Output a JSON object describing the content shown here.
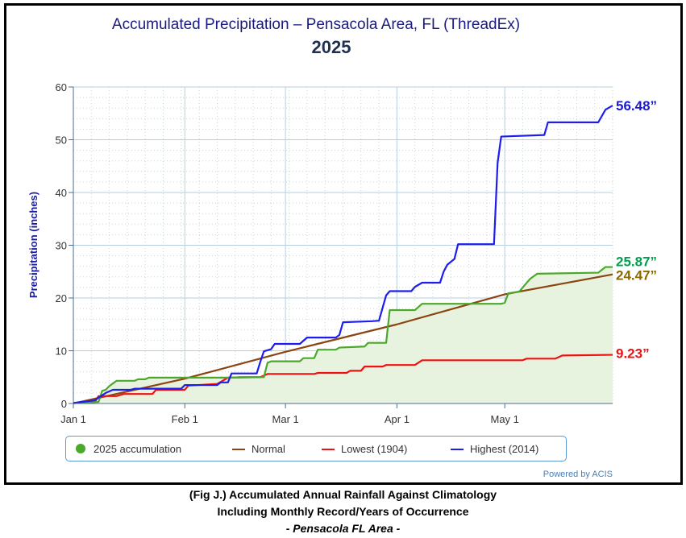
{
  "chart_data": {
    "type": "line",
    "title": "Accumulated Precipitation – Pensacola Area, FL (ThreadEx)",
    "subtitle": "2025",
    "xlabel": "",
    "ylabel": "Precipitation (inches)",
    "x_type": "date",
    "xlim": [
      "2025-01-01",
      "2025-05-31"
    ],
    "ylim": [
      0,
      60
    ],
    "y_ticks": [
      "0",
      "10",
      "20",
      "30",
      "40",
      "50",
      "60"
    ],
    "y_tick_values": [
      0,
      10,
      20,
      30,
      40,
      50,
      60
    ],
    "x_ticks": [
      {
        "label": "Jan 1",
        "date": "2025-01-01"
      },
      {
        "label": "Feb 1",
        "date": "2025-02-01"
      },
      {
        "label": "Mar 1",
        "date": "2025-03-01"
      },
      {
        "label": "Apr 1",
        "date": "2025-04-01"
      },
      {
        "label": "May 1",
        "date": "2025-05-01"
      }
    ],
    "grid": true,
    "legend_position": "bottom",
    "series": [
      {
        "name": "2025 accumulation",
        "color": "#4aa82a",
        "fill": "#e8f3df",
        "end_label": "25.87”",
        "end_label_color": "#00a050",
        "points": [
          [
            "2025-01-01",
            0.1
          ],
          [
            "2025-01-08",
            0.3
          ],
          [
            "2025-01-09",
            2.4
          ],
          [
            "2025-01-10",
            2.6
          ],
          [
            "2025-01-11",
            3.3
          ],
          [
            "2025-01-13",
            4.3
          ],
          [
            "2025-01-18",
            4.3
          ],
          [
            "2025-01-19",
            4.6
          ],
          [
            "2025-01-21",
            4.6
          ],
          [
            "2025-01-22",
            4.9
          ],
          [
            "2025-02-15",
            4.9
          ],
          [
            "2025-02-16",
            5.0
          ],
          [
            "2025-02-23",
            5.0
          ],
          [
            "2025-02-24",
            7.7
          ],
          [
            "2025-02-25",
            8.0
          ],
          [
            "2025-03-05",
            8.0
          ],
          [
            "2025-03-06",
            8.6
          ],
          [
            "2025-03-09",
            8.6
          ],
          [
            "2025-03-10",
            10.2
          ],
          [
            "2025-03-15",
            10.2
          ],
          [
            "2025-03-16",
            10.6
          ],
          [
            "2025-03-23",
            10.8
          ],
          [
            "2025-03-24",
            11.5
          ],
          [
            "2025-03-29",
            11.5
          ],
          [
            "2025-03-30",
            17.7
          ],
          [
            "2025-04-06",
            17.7
          ],
          [
            "2025-04-08",
            18.9
          ],
          [
            "2025-04-30",
            18.9
          ],
          [
            "2025-05-01",
            19.1
          ],
          [
            "2025-05-02",
            20.9
          ],
          [
            "2025-05-05",
            21.2
          ],
          [
            "2025-05-08",
            23.6
          ],
          [
            "2025-05-10",
            24.6
          ],
          [
            "2025-05-27",
            24.8
          ],
          [
            "2025-05-29",
            25.87
          ],
          [
            "2025-05-31",
            25.87
          ]
        ]
      },
      {
        "name": "Normal",
        "color": "#8b4513",
        "end_label": "24.47”",
        "end_label_color": "#8a6a00",
        "points": [
          [
            "2025-01-01",
            0.0
          ],
          [
            "2025-02-01",
            4.7
          ],
          [
            "2025-03-01",
            9.8
          ],
          [
            "2025-04-01",
            15.0
          ],
          [
            "2025-05-01",
            20.7
          ],
          [
            "2025-05-31",
            24.47
          ]
        ]
      },
      {
        "name": "Lowest (1904)",
        "color": "#ee1111",
        "end_label": "9.23”",
        "end_label_color": "#ee1111",
        "points": [
          [
            "2025-01-01",
            0.1
          ],
          [
            "2025-01-07",
            0.3
          ],
          [
            "2025-01-08",
            1.4
          ],
          [
            "2025-01-13",
            1.4
          ],
          [
            "2025-01-15",
            1.8
          ],
          [
            "2025-01-23",
            1.8
          ],
          [
            "2025-01-24",
            2.6
          ],
          [
            "2025-02-01",
            2.6
          ],
          [
            "2025-02-02",
            3.4
          ],
          [
            "2025-02-10",
            3.7
          ],
          [
            "2025-02-13",
            4.9
          ],
          [
            "2025-02-22",
            5.0
          ],
          [
            "2025-02-24",
            5.6
          ],
          [
            "2025-03-09",
            5.6
          ],
          [
            "2025-03-10",
            5.8
          ],
          [
            "2025-03-18",
            5.8
          ],
          [
            "2025-03-19",
            6.2
          ],
          [
            "2025-03-22",
            6.2
          ],
          [
            "2025-03-23",
            7.0
          ],
          [
            "2025-03-28",
            7.0
          ],
          [
            "2025-03-29",
            7.3
          ],
          [
            "2025-04-06",
            7.3
          ],
          [
            "2025-04-08",
            8.2
          ],
          [
            "2025-05-06",
            8.2
          ],
          [
            "2025-05-07",
            8.5
          ],
          [
            "2025-05-15",
            8.5
          ],
          [
            "2025-05-17",
            9.1
          ],
          [
            "2025-05-31",
            9.23
          ]
        ]
      },
      {
        "name": "Highest (2014)",
        "color": "#1d1dee",
        "end_label": "56.48”",
        "end_label_color": "#1a1acc",
        "points": [
          [
            "2025-01-01",
            0.1
          ],
          [
            "2025-01-07",
            0.6
          ],
          [
            "2025-01-08",
            1.1
          ],
          [
            "2025-01-10",
            2.0
          ],
          [
            "2025-01-12",
            2.6
          ],
          [
            "2025-01-17",
            2.6
          ],
          [
            "2025-01-18",
            2.8
          ],
          [
            "2025-01-31",
            2.8
          ],
          [
            "2025-02-01",
            3.5
          ],
          [
            "2025-02-10",
            3.5
          ],
          [
            "2025-02-11",
            4.0
          ],
          [
            "2025-02-13",
            4.0
          ],
          [
            "2025-02-14",
            5.7
          ],
          [
            "2025-02-21",
            5.7
          ],
          [
            "2025-02-22",
            7.9
          ],
          [
            "2025-02-23",
            9.9
          ],
          [
            "2025-02-25",
            10.3
          ],
          [
            "2025-02-26",
            11.3
          ],
          [
            "2025-03-05",
            11.3
          ],
          [
            "2025-03-07",
            12.5
          ],
          [
            "2025-03-15",
            12.5
          ],
          [
            "2025-03-16",
            13.0
          ],
          [
            "2025-03-17",
            15.4
          ],
          [
            "2025-03-25",
            15.6
          ],
          [
            "2025-03-27",
            15.7
          ],
          [
            "2025-03-29",
            20.5
          ],
          [
            "2025-03-30",
            21.3
          ],
          [
            "2025-04-05",
            21.3
          ],
          [
            "2025-04-06",
            22.1
          ],
          [
            "2025-04-08",
            22.9
          ],
          [
            "2025-04-13",
            22.9
          ],
          [
            "2025-04-14",
            25.0
          ],
          [
            "2025-04-15",
            26.3
          ],
          [
            "2025-04-17",
            27.4
          ],
          [
            "2025-04-18",
            30.2
          ],
          [
            "2025-04-28",
            30.2
          ],
          [
            "2025-04-29",
            45.6
          ],
          [
            "2025-04-30",
            50.6
          ],
          [
            "2025-05-12",
            50.9
          ],
          [
            "2025-05-13",
            53.3
          ],
          [
            "2025-05-27",
            53.3
          ],
          [
            "2025-05-29",
            55.7
          ],
          [
            "2025-05-31",
            56.48
          ]
        ]
      }
    ]
  },
  "watermark": "Powered by ACIS",
  "caption": {
    "line1": "(Fig J.) Accumulated Annual Rainfall Against  Climatology",
    "line2": "Including Monthly Record/Years of Occurrence",
    "line3": "- Pensacola FL Area -"
  }
}
